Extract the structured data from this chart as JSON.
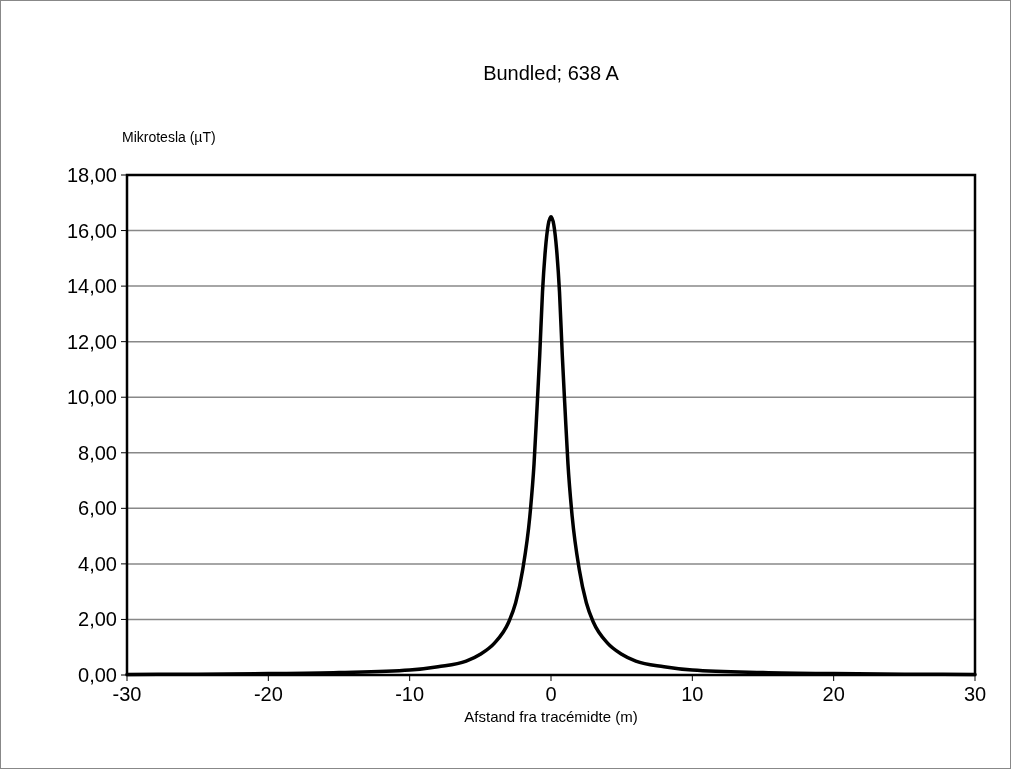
{
  "chart_data": {
    "type": "line",
    "title": "Bundled; 638 A",
    "xlabel": "Afstand fra tracémidte (m)",
    "ylabel": "Mikrotesla (µT)",
    "x": [
      -30,
      -25,
      -20,
      -15,
      -10,
      -8,
      -6,
      -5,
      -4,
      -3,
      -2.5,
      -2,
      -1.5,
      -1.2,
      -1,
      -0.8,
      -0.6,
      -0.4,
      -0.2,
      0,
      0.2,
      0.4,
      0.6,
      0.8,
      1,
      1.2,
      1.5,
      2,
      2.5,
      3,
      4,
      5,
      6,
      8,
      10,
      15,
      20,
      25,
      30
    ],
    "series": [
      {
        "color": "#000000",
        "values": [
          0.02,
          0.03,
          0.05,
          0.09,
          0.18,
          0.3,
          0.5,
          0.75,
          1.15,
          1.9,
          2.6,
          3.8,
          5.7,
          7.6,
          9.5,
          11.5,
          13.8,
          15.3,
          16.2,
          16.5,
          16.2,
          15.3,
          13.8,
          11.5,
          9.5,
          7.6,
          5.7,
          3.8,
          2.6,
          1.9,
          1.15,
          0.75,
          0.5,
          0.3,
          0.18,
          0.09,
          0.05,
          0.03,
          0.02
        ]
      }
    ],
    "xlim": [
      -30,
      30
    ],
    "xticks": [
      -30,
      -20,
      -10,
      0,
      10,
      20,
      30
    ],
    "ylim": [
      0,
      18
    ],
    "yticks": [
      {
        "value": 0,
        "label": "0,00"
      },
      {
        "value": 2,
        "label": "2,00"
      },
      {
        "value": 4,
        "label": "4,00"
      },
      {
        "value": 6,
        "label": "6,00"
      },
      {
        "value": 8,
        "label": "8,00"
      },
      {
        "value": 10,
        "label": "10,00"
      },
      {
        "value": 12,
        "label": "12,00"
      },
      {
        "value": 14,
        "label": "14,00"
      },
      {
        "value": 16,
        "label": "16,00"
      },
      {
        "value": 18,
        "label": "18,00"
      }
    ],
    "grid": "y",
    "marker": "none",
    "line_style": "solid"
  }
}
